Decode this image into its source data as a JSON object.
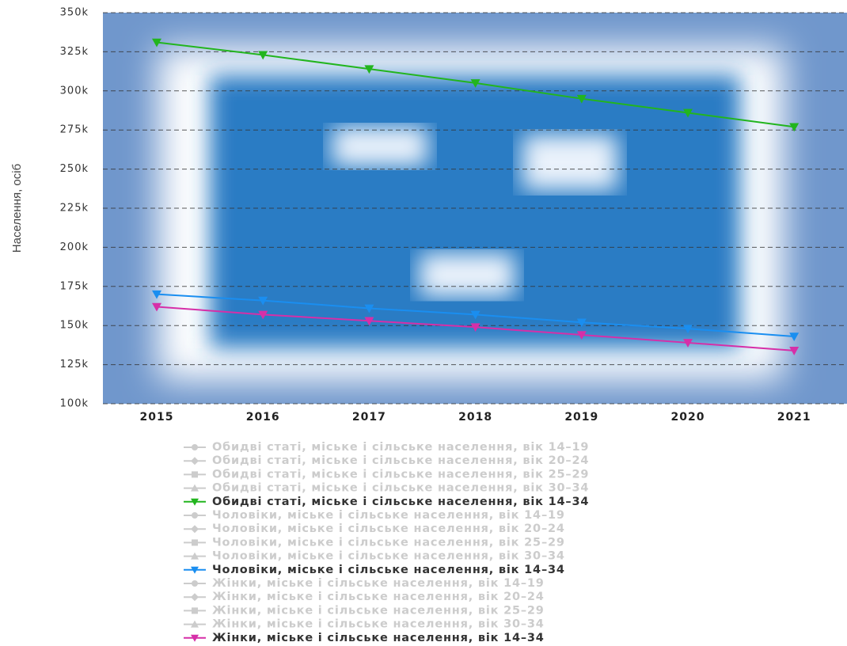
{
  "chart_data": {
    "type": "line",
    "y_label": "Населення, осіб",
    "categories": [
      "2015",
      "2016",
      "2017",
      "2018",
      "2019",
      "2020",
      "2021"
    ],
    "ylim": [
      100000,
      350000
    ],
    "yticks": [
      {
        "value": 100000,
        "label": "100k"
      },
      {
        "value": 125000,
        "label": "125k"
      },
      {
        "value": 150000,
        "label": "150k"
      },
      {
        "value": 175000,
        "label": "175k"
      },
      {
        "value": 200000,
        "label": "200k"
      },
      {
        "value": 225000,
        "label": "225k"
      },
      {
        "value": 250000,
        "label": "250k"
      },
      {
        "value": 275000,
        "label": "275k"
      },
      {
        "value": 300000,
        "label": "300k"
      },
      {
        "value": 325000,
        "label": "325k"
      },
      {
        "value": 350000,
        "label": "350k"
      }
    ],
    "grid": true,
    "series": [
      {
        "name": "Обидві статі, міське і сільське населення, вік 14–19",
        "marker": "circle",
        "visible": false
      },
      {
        "name": "Обидві статі, міське і сільське населення, вік 20–24",
        "marker": "diamond",
        "visible": false
      },
      {
        "name": "Обидві статі, міське і сільське населення, вік 25–29",
        "marker": "square",
        "visible": false
      },
      {
        "name": "Обидві статі, міське і сільське населення, вік 30–34",
        "marker": "triangle",
        "visible": false
      },
      {
        "name": "Обидві статі, міське і сільське населення, вік 14–34",
        "marker": "triangle-down",
        "visible": true,
        "color": "#22b51e",
        "values": [
          331000,
          323000,
          314000,
          305000,
          295000,
          286000,
          277000
        ]
      },
      {
        "name": "Чоловіки, міське і сільське населення, вік 14–19",
        "marker": "circle",
        "visible": false
      },
      {
        "name": "Чоловіки, міське і сільське населення, вік 20–24",
        "marker": "diamond",
        "visible": false
      },
      {
        "name": "Чоловіки, міське і сільське населення, вік 25–29",
        "marker": "square",
        "visible": false
      },
      {
        "name": "Чоловіки, міське і сільське населення, вік 30–34",
        "marker": "triangle",
        "visible": false
      },
      {
        "name": "Чоловіки, міське і сільське населення, вік 14–34",
        "marker": "triangle-down",
        "visible": true,
        "color": "#1a8ef0",
        "values": [
          170000,
          166000,
          161000,
          157000,
          152000,
          148000,
          143000
        ]
      },
      {
        "name": "Жінки, міське і сільське населення, вік 14–19",
        "marker": "circle",
        "visible": false
      },
      {
        "name": "Жінки, міське і сільське населення, вік 20–24",
        "marker": "diamond",
        "visible": false
      },
      {
        "name": "Жінки, міське і сільське населення, вік 25–29",
        "marker": "square",
        "visible": false
      },
      {
        "name": "Жінки, міське і сільське населення, вік 30–34",
        "marker": "triangle",
        "visible": false
      },
      {
        "name": "Жінки, міське і сільське населення, вік 14–34",
        "marker": "triangle-down",
        "visible": true,
        "color": "#d62fa8",
        "values": [
          162000,
          157000,
          153000,
          149000,
          144000,
          139000,
          134000
        ]
      }
    ]
  }
}
